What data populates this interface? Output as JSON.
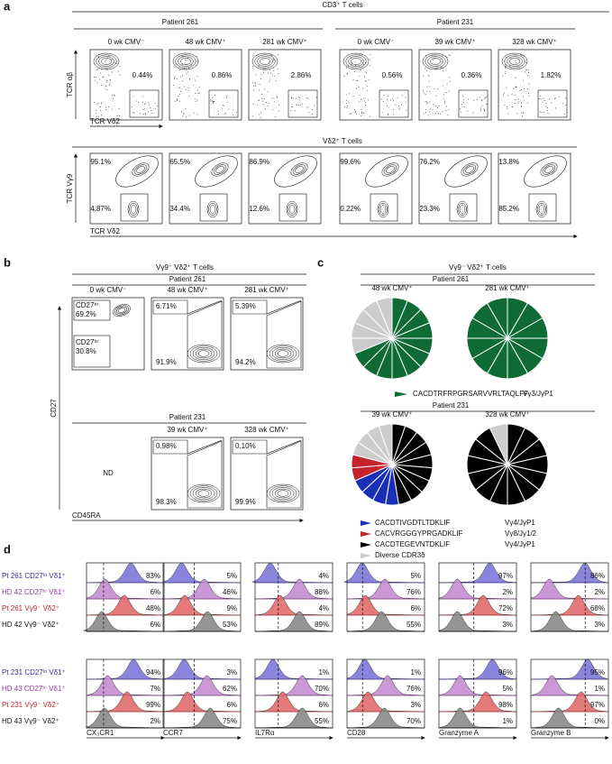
{
  "panel_a": {
    "letter": "a",
    "header": "CD3⁺ T cells",
    "patients": [
      "Patient 261",
      "Patient 231"
    ],
    "columns": [
      "0 wk CMV⁻",
      "48 wk CMV⁺",
      "281 wk CMV⁺",
      "0 wk CMV⁻",
      "39 wk CMV⁺",
      "328 wk CMV⁺"
    ],
    "row1": {
      "y_label": "TCR αβ",
      "x_label": "TCR Vδ2",
      "gates": [
        "0.44%",
        "0.86%",
        "2.86%",
        "0.56%",
        "0.36%",
        "1.82%"
      ]
    },
    "row2": {
      "header": "Vδ2⁺ T cells",
      "y_label": "TCR Vγ9",
      "x_label": "TCR Vδ2",
      "upper": [
        "95.1%",
        "65.5%",
        "86.9%",
        "99.6%",
        "76.2%",
        "13.8%"
      ],
      "lower": [
        "4.87%",
        "34.4%",
        "12.6%",
        "0.22%",
        "23.3%",
        "85.2%"
      ]
    }
  },
  "panel_b": {
    "letter": "b",
    "header": "Vγ9⁻ Vδ2⁺ T cells",
    "y_label": "CD27",
    "x_label": "CD45RA",
    "patients": [
      {
        "label": "Patient 261",
        "plots": [
          {
            "label": "0 wk CMV⁻",
            "gates": [
              {
                "label": "CD27ʰⁱ",
                "value": "69.2%"
              },
              {
                "label": "CD27ˡᵒ",
                "value": "30.8%"
              }
            ]
          },
          {
            "label": "48 wk CMV⁺",
            "gates": [
              {
                "value": "6.71%"
              },
              {
                "value": "91.9%"
              }
            ]
          },
          {
            "label": "281 wk CMV⁺",
            "gates": [
              {
                "value": "5.39%"
              },
              {
                "value": "94.2%"
              }
            ]
          }
        ]
      },
      {
        "label": "Patient 231",
        "missing": "ND",
        "plots": [
          {
            "label": "39 wk CMV⁺",
            "gates": [
              {
                "value": "0.98%"
              },
              {
                "value": "98.3%"
              }
            ]
          },
          {
            "label": "328 wk CMV⁺",
            "gates": [
              {
                "value": "0.10%"
              },
              {
                "value": "99.9%"
              }
            ]
          }
        ]
      }
    ]
  },
  "panel_c": {
    "letter": "c",
    "header": "Vγ9⁻ Vδ2⁺ T cells",
    "clonotypes": [
      {
        "name": "CACDTRFRPGRSARVVRLTAQLFF",
        "v_gene": "Vγ3/JγP1",
        "color": "#0f6b35"
      },
      {
        "name": "CACDTIVGDTLTDKLIF",
        "v_gene": "Vγ4/JγP1",
        "color": "#1a2fb8"
      },
      {
        "name": "CACVRGGGYPRGADKLIF",
        "v_gene": "Vγ8/Jγ1/2",
        "color": "#c4232b"
      },
      {
        "name": "CACDTEGEVNTDKLIF",
        "v_gene": "Vγ4/JγP1",
        "color": "#000000"
      },
      {
        "name": "Diverse CDR3δ",
        "color": "#cccccc"
      }
    ],
    "patients": [
      {
        "label": "Patient 261",
        "pies": [
          {
            "label": "48 wk CMV⁺",
            "counts": [
              11,
              0,
              0,
              0,
              5
            ]
          },
          {
            "label": "281 wk CMV⁺",
            "counts": [
              12,
              0,
              0,
              0,
              0
            ]
          }
        ]
      },
      {
        "label": "Patient 231",
        "pies": [
          {
            "label": "39 wk CMV⁺",
            "counts": [
              0,
              4,
              2,
              9,
              4
            ]
          },
          {
            "label": "328 wk CMV⁺",
            "counts": [
              0,
              0,
              0,
              13,
              1
            ]
          }
        ]
      }
    ]
  },
  "panel_d": {
    "letter": "d",
    "markers": [
      "CX₃CR1",
      "CCR7",
      "IL7Rα",
      "CD28",
      "Granzyme A",
      "Granzyme B"
    ],
    "blocks": [
      {
        "rows": [
          {
            "label": "Pt 261 CD27ˡᵒ Vδ1⁺",
            "color": "#3b2f9e",
            "fill": "#7c78d8",
            "values": [
              "83%",
              "5%",
              "4%",
              "5%",
              "97%",
              "86%"
            ]
          },
          {
            "label": "HD 42 CD27ʰⁱ Vδ1⁺",
            "color": "#8e3d9c",
            "fill": "#c48ed0",
            "values": [
              "6%",
              "46%",
              "88%",
              "76%",
              "2%",
              "2%"
            ]
          },
          {
            "label": "Pt 261 Vγ9⁻ Vδ2⁺",
            "color": "#c0282d",
            "fill": "#e26b6b",
            "values": [
              "48%",
              "9%",
              "4%",
              "6%",
              "72%",
              "68%"
            ]
          },
          {
            "label": "HD 42 Vγ9⁻ Vδ2⁺",
            "color": "#111111",
            "fill": "#8a8a8a",
            "values": [
              "6%",
              "53%",
              "89%",
              "55%",
              "3%",
              "3%"
            ]
          }
        ]
      },
      {
        "rows": [
          {
            "label": "Pt 231 CD27ˡᵒ Vδ1⁺",
            "color": "#3b2f9e",
            "fill": "#7c78d8",
            "values": [
              "94%",
              "3%",
              "1%",
              "1%",
              "96%",
              "95%"
            ]
          },
          {
            "label": "HD 43 CD27ʰⁱ Vδ1⁺",
            "color": "#8e3d9c",
            "fill": "#c48ed0",
            "values": [
              "7%",
              "62%",
              "70%",
              "76%",
              "5%",
              "1%"
            ]
          },
          {
            "label": "Pt 231 Vγ9⁻ Vδ2⁺",
            "color": "#c0282d",
            "fill": "#e26b6b",
            "values": [
              "99%",
              "6%",
              "6%",
              "3%",
              "98%",
              "97%"
            ]
          },
          {
            "label": "HD 43 Vγ9⁻ Vδ2⁺",
            "color": "#111111",
            "fill": "#8a8a8a",
            "values": [
              "2%",
              "75%",
              "55%",
              "70%",
              "1%",
              "0%"
            ]
          }
        ]
      }
    ]
  }
}
